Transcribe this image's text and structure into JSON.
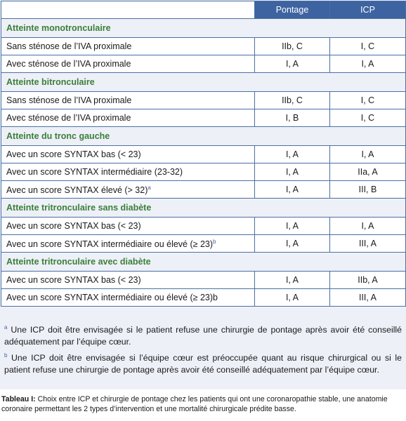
{
  "header": {
    "col1": "",
    "col2": "Pontage",
    "col3": "ICP"
  },
  "sections": [
    {
      "title": "Atteinte monotronculaire",
      "rows": [
        {
          "label": "Sans sténose de l’IVA proximale",
          "sup": "",
          "pontage": "IIb, C",
          "icp": "I, C"
        },
        {
          "label": "Avec sténose de l’IVA proximale",
          "sup": "",
          "pontage": "I, A",
          "icp": "I, A"
        }
      ]
    },
    {
      "title": "Atteinte bitronculaire",
      "rows": [
        {
          "label": "Sans sténose de l’IVA proximale",
          "sup": "",
          "pontage": "IIb, C",
          "icp": "I, C"
        },
        {
          "label": "Avec sténose de l’IVA proximale",
          "sup": "",
          "pontage": "I, B",
          "icp": "I, C"
        }
      ]
    },
    {
      "title": "Atteinte du tronc gauche",
      "rows": [
        {
          "label": "Avec un score SYNTAX bas (< 23)",
          "sup": "",
          "pontage": "I, A",
          "icp": "I, A"
        },
        {
          "label": "Avec un score SYNTAX intermédiaire (23-32)",
          "sup": "",
          "pontage": "I, A",
          "icp": "IIa, A"
        },
        {
          "label": "Avec un score SYNTAX élevé (> 32)",
          "sup": "a",
          "pontage": "I, A",
          "icp": "III, B"
        }
      ]
    },
    {
      "title": "Atteinte tritronculaire sans diabète",
      "rows": [
        {
          "label": "Avec un score SYNTAX bas (< 23)",
          "sup": "",
          "pontage": "I, A",
          "icp": "I, A"
        },
        {
          "label": "Avec un score SYNTAX intermédiaire ou élevé (≥ 23)",
          "sup": "b",
          "pontage": "I, A",
          "icp": "III, A"
        }
      ]
    },
    {
      "title": "Atteinte tritronculaire avec diabète",
      "rows": [
        {
          "label": "Avec un score SYNTAX bas (< 23)",
          "sup": "",
          "pontage": "I, A",
          "icp": "IIb, A"
        },
        {
          "label": "Avec un score SYNTAX intermédiaire ou élevé (≥ 23)b",
          "sup": "",
          "pontage": "I, A",
          "icp": "III, A"
        }
      ]
    }
  ],
  "notes": [
    {
      "mark": "a",
      "text": " Une ICP doit être envisagée si le patient refuse une chirurgie de pontage après avoir été conseillé adéquatement par l’équipe cœur."
    },
    {
      "mark": "b",
      "text": " Une ICP doit être envisagée si l’équipe cœur est préoccupée quant au risque chirurgical ou si le patient refuse une chirurgie de pontage après avoir été conseillé adéquatement par l’équipe cœur."
    }
  ],
  "caption": {
    "label": "Tableau I:",
    "text": " Choix entre ICP et chirurgie de pontage chez les patients qui ont une coronaropathie stable, une anatomie coronaire permettant les 2 types d’intervention et une mortalité chirurgicale prédite basse."
  },
  "colors": {
    "header_bg": "#3d63a0",
    "section_text": "#3a7f3a",
    "panel_bg": "#eef0f7",
    "border": "#4a6fa5"
  }
}
